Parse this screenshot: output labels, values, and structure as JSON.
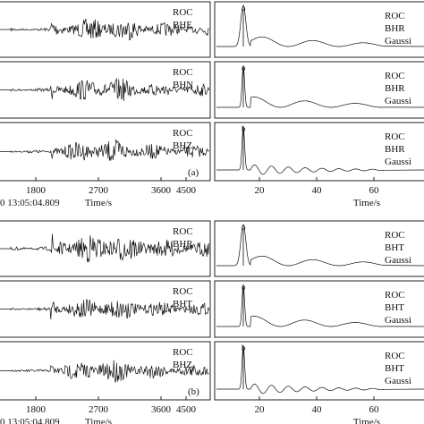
{
  "figure": {
    "top": {
      "left_panels": [
        {
          "station": "ROC",
          "channel": "BHE"
        },
        {
          "station": "ROC",
          "channel": "BHN"
        },
        {
          "station": "ROC",
          "channel": "BHZ"
        }
      ],
      "panel_label": "(a)",
      "left_xticks": [
        "1800",
        "2700",
        "3600",
        "4500"
      ],
      "left_xlabel": "Time/s",
      "date": "0 13:05:04.809",
      "right_panels": [
        {
          "station": "ROC",
          "channel": "BHR",
          "filter": "Gaussi",
          "marker": "o"
        },
        {
          "station": "ROC",
          "channel": "BHR",
          "filter": "Gaussi",
          "marker": "o"
        },
        {
          "station": "ROC",
          "channel": "BHR",
          "filter": "Gaussi",
          "marker": "b"
        }
      ],
      "right_xticks": [
        "20",
        "40",
        "60"
      ],
      "right_xlabel": "Time/s"
    },
    "bottom": {
      "left_panels": [
        {
          "station": "ROC",
          "channel": "BHR"
        },
        {
          "station": "ROC",
          "channel": "BHT"
        },
        {
          "station": "ROC",
          "channel": "BHZ"
        }
      ],
      "panel_label": "(b)",
      "left_xticks": [
        "1800",
        "2700",
        "3600",
        "4500"
      ],
      "left_xlabel": "Time/s",
      "date": "0 13:05:04.809",
      "right_panels": [
        {
          "station": "ROC",
          "channel": "BHT",
          "filter": "Gaussi",
          "marker": "o"
        },
        {
          "station": "ROC",
          "channel": "BHT",
          "filter": "Gaussi",
          "marker": "o"
        },
        {
          "station": "ROC",
          "channel": "BHT",
          "filter": "Gaussi",
          "marker": "b"
        }
      ],
      "right_xticks": [
        "20",
        "40",
        "60"
      ],
      "right_xlabel": "Time/s"
    }
  }
}
